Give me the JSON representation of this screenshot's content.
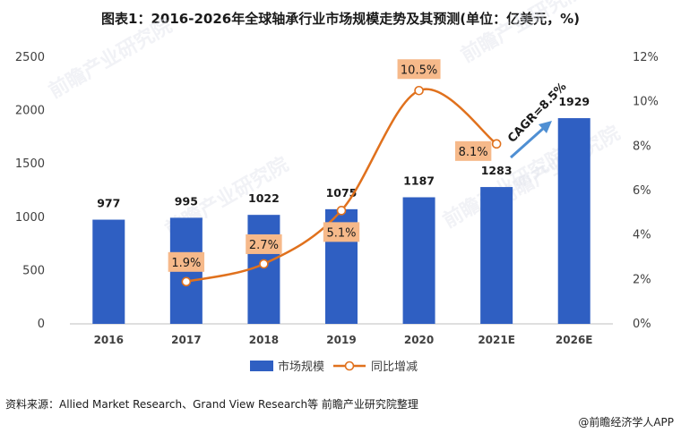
{
  "chart_data": {
    "type": "bar",
    "title": "图表1：2016-2026年全球轴承行业市场规模走势及其预测(单位：亿美元，%)",
    "categories": [
      "2016",
      "2017",
      "2018",
      "2019",
      "2020",
      "2021E",
      "2026E"
    ],
    "series": [
      {
        "name": "市场规模",
        "type": "bar",
        "axis": "left",
        "values": [
          977,
          995,
          1022,
          1075,
          1187,
          1283,
          1929
        ],
        "labels": [
          "977",
          "995",
          "1022",
          "1075",
          "1187",
          "1283",
          "1929"
        ]
      },
      {
        "name": "同比增减",
        "type": "line",
        "axis": "right",
        "values": [
          null,
          1.9,
          2.7,
          5.1,
          10.5,
          8.1,
          null
        ],
        "labels": [
          "",
          "1.9%",
          "2.7%",
          "5.1%",
          "10.5%",
          "8.1%",
          ""
        ]
      }
    ],
    "y_left": {
      "ylim": [
        0,
        2500
      ],
      "ticks": [
        0,
        500,
        1000,
        1500,
        2000,
        2500
      ],
      "tick_labels": [
        "0",
        "500",
        "1000",
        "1500",
        "2000",
        "2500"
      ]
    },
    "y_right": {
      "ylim": [
        0,
        12
      ],
      "ticks": [
        0,
        2,
        4,
        6,
        8,
        10,
        12
      ],
      "tick_labels": [
        "0%",
        "2%",
        "4%",
        "6%",
        "8%",
        "10%",
        "12%"
      ]
    },
    "annotation": "CAGR=8.5%",
    "legend_position": "bottom",
    "grid": false
  },
  "colors": {
    "bar": "#2f5fc2",
    "line": "#e0711d",
    "label_box": "#f6b98a",
    "arrow": "#4f8fd3",
    "axis": "#bfbfbf"
  },
  "watermark": "前瞻产业研究院",
  "source": "资料来源：Allied Market Research、Grand View Research等 前瞻产业研究院整理",
  "credit": "@前瞻经济学人APP"
}
